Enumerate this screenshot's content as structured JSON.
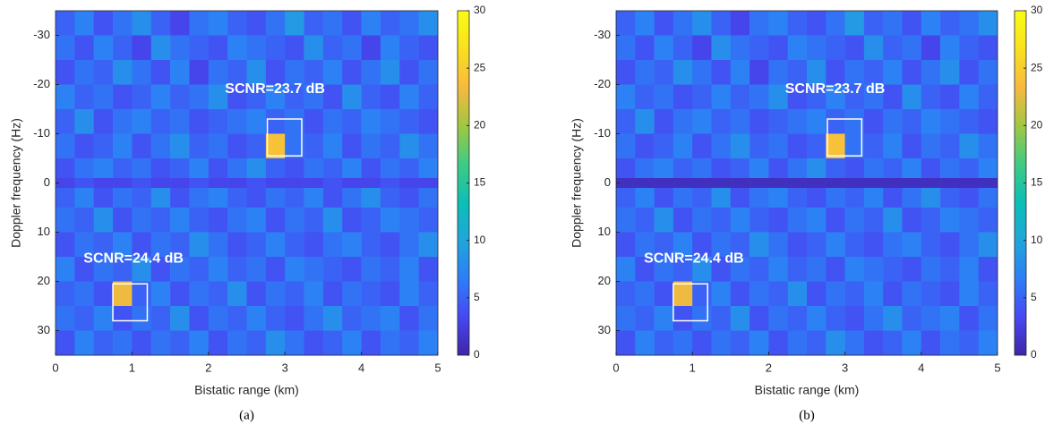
{
  "chart_data": [
    {
      "type": "heatmap",
      "caption": "(a)",
      "xlabel": "Bistatic range (km)",
      "ylabel": "Doppler frequency (Hz)",
      "xlim": [
        0,
        5
      ],
      "xticks": [
        0,
        1,
        2,
        3,
        4,
        5
      ],
      "ylim": [
        35,
        -35
      ],
      "yticks": [
        -30,
        -20,
        -10,
        0,
        10,
        20,
        30
      ],
      "xbins": [
        0,
        0.25,
        0.5,
        0.75,
        1,
        1.25,
        1.5,
        1.75,
        2,
        2.25,
        2.5,
        2.75,
        3,
        3.25,
        3.5,
        3.75,
        4,
        4.25,
        4.5,
        4.75,
        5
      ],
      "ybins": [
        -35,
        -30,
        -25,
        -20,
        -15,
        -10,
        -5,
        -1,
        1,
        5,
        10,
        15,
        20,
        25,
        30,
        35
      ],
      "z": [
        [
          5,
          7,
          4,
          6,
          8,
          5,
          3,
          6,
          7,
          5,
          4,
          6,
          9,
          5,
          6,
          4,
          7,
          5,
          6,
          8
        ],
        [
          6,
          4,
          7,
          5,
          3,
          8,
          6,
          5,
          4,
          7,
          6,
          5,
          4,
          8,
          5,
          6,
          3,
          7,
          5,
          4
        ],
        [
          4,
          6,
          5,
          8,
          6,
          4,
          7,
          3,
          6,
          5,
          8,
          4,
          6,
          5,
          7,
          4,
          6,
          8,
          4,
          6
        ],
        [
          7,
          5,
          6,
          4,
          5,
          7,
          5,
          6,
          8,
          4,
          5,
          7,
          5,
          6,
          4,
          8,
          5,
          4,
          7,
          5
        ],
        [
          5,
          8,
          4,
          6,
          7,
          5,
          6,
          4,
          5,
          6,
          7,
          5,
          6,
          4,
          6,
          5,
          7,
          6,
          5,
          4
        ],
        [
          6,
          4,
          5,
          7,
          4,
          6,
          8,
          5,
          6,
          4,
          5,
          24,
          6,
          5,
          7,
          4,
          6,
          5,
          8,
          6
        ],
        [
          4,
          6,
          7,
          5,
          6,
          4,
          5,
          7,
          4,
          6,
          8,
          5,
          4,
          6,
          5,
          7,
          4,
          6,
          5,
          7
        ],
        [
          3,
          4,
          3,
          3,
          4,
          3,
          3,
          4,
          3,
          3,
          4,
          3,
          3,
          3,
          4,
          3,
          3,
          4,
          3,
          3
        ],
        [
          5,
          7,
          4,
          6,
          5,
          8,
          4,
          6,
          7,
          5,
          4,
          6,
          5,
          7,
          4,
          6,
          8,
          5,
          4,
          6
        ],
        [
          6,
          5,
          8,
          4,
          6,
          5,
          7,
          5,
          4,
          6,
          7,
          4,
          6,
          5,
          8,
          4,
          5,
          7,
          6,
          5
        ],
        [
          4,
          6,
          5,
          7,
          4,
          6,
          5,
          8,
          6,
          4,
          5,
          7,
          5,
          4,
          6,
          7,
          5,
          4,
          6,
          8
        ],
        [
          7,
          4,
          6,
          5,
          8,
          4,
          6,
          5,
          7,
          5,
          6,
          4,
          7,
          6,
          5,
          4,
          6,
          5,
          7,
          4
        ],
        [
          5,
          6,
          4,
          23,
          5,
          7,
          4,
          6,
          5,
          8,
          4,
          6,
          5,
          7,
          4,
          6,
          5,
          4,
          7,
          5
        ],
        [
          6,
          5,
          7,
          4,
          6,
          5,
          8,
          4,
          6,
          5,
          7,
          5,
          4,
          6,
          8,
          5,
          6,
          7,
          4,
          6
        ],
        [
          4,
          7,
          5,
          6,
          4,
          6,
          5,
          7,
          4,
          6,
          5,
          8,
          6,
          4,
          5,
          7,
          4,
          6,
          5,
          7
        ]
      ],
      "clim": [
        0,
        30
      ],
      "cticks": [
        0,
        5,
        10,
        15,
        20,
        25,
        30
      ],
      "colormap": [
        "#3e26a8",
        "#4748f3",
        "#2d7ef7",
        "#1fa6db",
        "#0cbfb5",
        "#3fcb83",
        "#a1c742",
        "#f7b93f",
        "#f9e11e",
        "#f9fb15"
      ],
      "annotations": [
        {
          "text": "SCNR=23.7 dB",
          "x": 2.87,
          "y": -19
        },
        {
          "text": "SCNR=24.4 dB",
          "x": 1.02,
          "y": 15.4
        }
      ],
      "boxes": [
        {
          "x": [
            2.77,
            3.22
          ],
          "y": [
            -13,
            -5.5
          ]
        },
        {
          "x": [
            0.75,
            1.2
          ],
          "y": [
            20.5,
            28
          ]
        }
      ]
    },
    {
      "type": "heatmap",
      "caption": "(b)",
      "xlabel": "Bistatic range (km)",
      "ylabel": "Doppler frequency (Hz)",
      "xlim": [
        0,
        5
      ],
      "xticks": [
        0,
        1,
        2,
        3,
        4,
        5
      ],
      "ylim": [
        35,
        -35
      ],
      "yticks": [
        -30,
        -20,
        -10,
        0,
        10,
        20,
        30
      ],
      "xbins": [
        0,
        0.25,
        0.5,
        0.75,
        1,
        1.25,
        1.5,
        1.75,
        2,
        2.25,
        2.5,
        2.75,
        3,
        3.25,
        3.5,
        3.75,
        4,
        4.25,
        4.5,
        4.75,
        5
      ],
      "ybins": [
        -35,
        -30,
        -25,
        -20,
        -15,
        -10,
        -5,
        -1,
        1,
        5,
        10,
        15,
        20,
        25,
        30,
        35
      ],
      "z": [
        [
          5,
          7,
          4,
          6,
          8,
          5,
          3,
          6,
          7,
          5,
          4,
          6,
          9,
          5,
          6,
          4,
          7,
          5,
          6,
          8
        ],
        [
          6,
          4,
          7,
          5,
          3,
          8,
          6,
          5,
          4,
          7,
          6,
          5,
          4,
          8,
          5,
          6,
          3,
          7,
          5,
          4
        ],
        [
          4,
          6,
          5,
          8,
          6,
          4,
          7,
          3,
          6,
          5,
          8,
          4,
          6,
          5,
          7,
          4,
          6,
          8,
          4,
          6
        ],
        [
          7,
          5,
          6,
          4,
          5,
          7,
          5,
          6,
          8,
          4,
          5,
          7,
          5,
          6,
          4,
          8,
          5,
          4,
          7,
          5
        ],
        [
          5,
          8,
          4,
          6,
          7,
          5,
          6,
          4,
          5,
          6,
          7,
          5,
          6,
          4,
          6,
          5,
          7,
          6,
          5,
          4
        ],
        [
          6,
          4,
          5,
          7,
          4,
          6,
          8,
          5,
          6,
          4,
          5,
          24,
          6,
          5,
          7,
          4,
          6,
          5,
          8,
          6
        ],
        [
          4,
          6,
          7,
          5,
          6,
          4,
          5,
          7,
          4,
          6,
          8,
          5,
          4,
          6,
          5,
          7,
          4,
          6,
          5,
          7
        ],
        [
          1,
          1,
          1,
          1,
          1,
          1,
          1,
          1,
          1,
          1,
          1,
          1,
          1,
          1,
          1,
          1,
          1,
          1,
          1,
          1
        ],
        [
          5,
          7,
          4,
          6,
          5,
          8,
          4,
          6,
          7,
          5,
          4,
          6,
          5,
          7,
          4,
          6,
          8,
          5,
          4,
          6
        ],
        [
          6,
          5,
          8,
          4,
          6,
          5,
          7,
          5,
          4,
          6,
          7,
          4,
          6,
          5,
          8,
          4,
          5,
          7,
          6,
          5
        ],
        [
          4,
          6,
          5,
          7,
          4,
          6,
          5,
          8,
          6,
          4,
          5,
          7,
          5,
          4,
          6,
          7,
          5,
          4,
          6,
          8
        ],
        [
          7,
          4,
          6,
          5,
          8,
          4,
          6,
          5,
          7,
          5,
          6,
          4,
          7,
          6,
          5,
          4,
          6,
          5,
          7,
          4
        ],
        [
          5,
          6,
          4,
          23,
          5,
          7,
          4,
          6,
          5,
          8,
          4,
          6,
          5,
          7,
          4,
          6,
          5,
          4,
          7,
          5
        ],
        [
          6,
          5,
          7,
          4,
          6,
          5,
          8,
          4,
          6,
          5,
          7,
          5,
          4,
          6,
          8,
          5,
          6,
          7,
          4,
          6
        ],
        [
          4,
          7,
          5,
          6,
          4,
          6,
          5,
          7,
          4,
          6,
          5,
          8,
          6,
          4,
          5,
          7,
          4,
          6,
          5,
          7
        ]
      ],
      "clim": [
        0,
        30
      ],
      "cticks": [
        0,
        5,
        10,
        15,
        20,
        25,
        30
      ],
      "colormap": [
        "#3e26a8",
        "#4748f3",
        "#2d7ef7",
        "#1fa6db",
        "#0cbfb5",
        "#3fcb83",
        "#a1c742",
        "#f7b93f",
        "#f9e11e",
        "#f9fb15"
      ],
      "annotations": [
        {
          "text": "SCNR=23.7 dB",
          "x": 2.87,
          "y": -19
        },
        {
          "text": "SCNR=24.4 dB",
          "x": 1.02,
          "y": 15.4
        }
      ],
      "boxes": [
        {
          "x": [
            2.77,
            3.22
          ],
          "y": [
            -13,
            -5.5
          ]
        },
        {
          "x": [
            0.75,
            1.2
          ],
          "y": [
            20.5,
            28
          ]
        }
      ]
    }
  ]
}
